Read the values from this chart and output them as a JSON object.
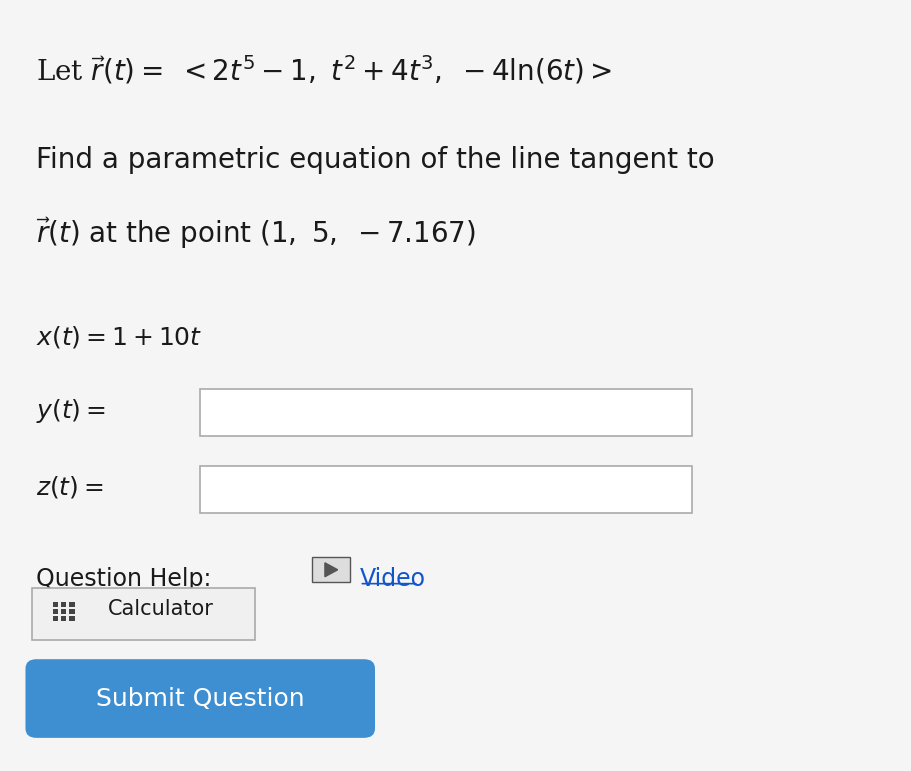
{
  "bg_color": "#f5f5f5",
  "text_color": "#1a1a1a",
  "question_help": "Question Help:",
  "video_text": "Video",
  "calculator_text": "Calculator",
  "submit_text": "Submit Question",
  "submit_bg": "#3d8fd1",
  "submit_text_color": "#ffffff",
  "input_box_color": "#ffffff",
  "input_border_color": "#aaaaaa",
  "calc_border_color": "#aaaaaa",
  "calc_bg": "#f0f0f0",
  "font_size_main": 20,
  "font_size_eq": 18,
  "font_size_labels": 18,
  "font_size_help": 17,
  "font_size_submit": 18
}
